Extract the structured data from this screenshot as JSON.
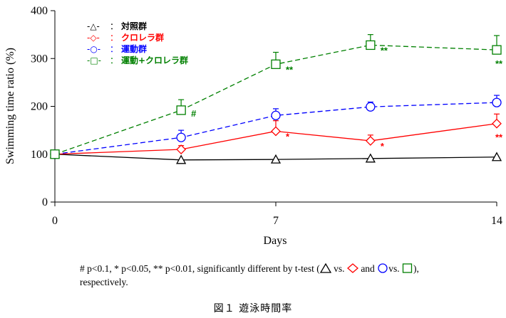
{
  "chart_data": {
    "type": "line",
    "ylabel": "Swimming time ratio (%)",
    "xlabel": "Days",
    "xlim": [
      0,
      14
    ],
    "ylim": [
      0,
      400
    ],
    "xticks": [
      "0",
      "7",
      "14"
    ],
    "yticks": [
      "0",
      "100",
      "200",
      "300",
      "400"
    ],
    "legend_position": "top-left",
    "series": [
      {
        "name": "対照群",
        "legend_code": "-△-",
        "color": "#000000",
        "marker": "triangle",
        "dash": "solid",
        "x": [
          0,
          4,
          7,
          10,
          14
        ],
        "values": [
          100,
          88,
          89,
          91,
          94
        ],
        "err": [
          0,
          0,
          0,
          0,
          0
        ],
        "sig": [
          "",
          "",
          "",
          "",
          ""
        ]
      },
      {
        "name": "クロレラ群",
        "legend_code": "-◇-",
        "color": "#ff0000",
        "marker": "diamond",
        "dash": "solid",
        "x": [
          0,
          4,
          7,
          10,
          14
        ],
        "values": [
          100,
          110,
          148,
          128,
          164
        ],
        "err": [
          0,
          8,
          22,
          12,
          20
        ],
        "sig": [
          "",
          "",
          "*",
          "*",
          "**"
        ]
      },
      {
        "name": "運動群",
        "legend_code": "-○-",
        "color": "#0000ff",
        "marker": "circle",
        "dash": "dashed",
        "x": [
          0,
          4,
          7,
          10,
          14
        ],
        "values": [
          100,
          135,
          181,
          199,
          208
        ],
        "err": [
          0,
          15,
          14,
          10,
          15
        ],
        "sig": [
          "",
          "",
          "",
          "",
          ""
        ]
      },
      {
        "name": "運動+クロレラ群",
        "legend_code": "-□-",
        "color": "#008000",
        "marker": "square",
        "dash": "dashed",
        "x": [
          0,
          4,
          7,
          10,
          14
        ],
        "values": [
          100,
          192,
          288,
          328,
          318
        ],
        "err": [
          0,
          22,
          25,
          22,
          30
        ],
        "sig": [
          "",
          "#",
          "**",
          "**",
          "**"
        ]
      }
    ]
  },
  "legend_separator": "：",
  "footnote": {
    "part1": "# p<0.1, * p<0.05, ** p<0.01, significantly different by t-test (",
    "part2": " vs. ",
    "part3": " and ",
    "part4": "vs. ",
    "part5": "),",
    "line2": "respectively."
  },
  "caption": "図１ 遊泳時間率"
}
